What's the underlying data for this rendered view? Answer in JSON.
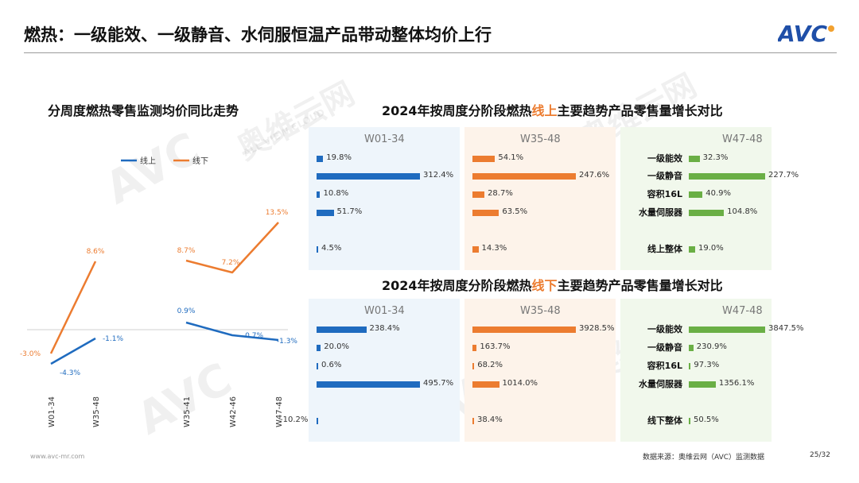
{
  "header": {
    "title": "燃热：一级能效、一级静音、水伺服恒温产品带动整体均价上行",
    "logo": "AVC"
  },
  "footer": {
    "source": "数据来源：奥维云网（AVC）监测数据",
    "page": "25/32",
    "url": "www.avc-mr.com"
  },
  "watermark": {
    "text": "奥维云网",
    "subtext": "ALL VIEW CLOUD",
    "mark": "AVC"
  },
  "colors": {
    "online": "#1f6bbf",
    "offline": "#ec7c30",
    "w4748": "#6aaf45",
    "panel_online": "#eef5fb",
    "panel_offline": "#fdf3ea",
    "panel_green": "#f1f8ec"
  },
  "chart_data": [
    {
      "type": "line",
      "title": "分周度燃热零售监测均价同比走势",
      "x": [
        "W01-34",
        "W35-48",
        "W35-41",
        "W42-46",
        "W47-48"
      ],
      "series": [
        {
          "name": "线上",
          "segments": [
            {
              "x": [
                "W01-34",
                "W35-48"
              ],
              "values": [
                -4.3,
                -1.1
              ]
            },
            {
              "x": [
                "W35-41",
                "W42-46",
                "W47-48"
              ],
              "values": [
                0.9,
                -0.7,
                -1.3
              ]
            }
          ]
        },
        {
          "name": "线下",
          "segments": [
            {
              "x": [
                "W01-34",
                "W35-48"
              ],
              "values": [
                -3.0,
                8.6
              ]
            },
            {
              "x": [
                "W35-41",
                "W42-46",
                "W47-48"
              ],
              "values": [
                8.7,
                7.2,
                13.5
              ]
            }
          ]
        }
      ],
      "labels": {
        "online": [
          "-4.3%",
          "-1.1%",
          "0.9%",
          "-0.7%",
          "-1.3%"
        ],
        "offline": [
          "-3.0%",
          "8.6%",
          "8.7%",
          "7.2%",
          "13.5%"
        ]
      },
      "unit": "%",
      "legend": "top-left"
    },
    {
      "type": "bar",
      "title": "2024年按周度分阶段燃热线上主要趋势产品零售量增长对比",
      "title_parts": [
        "2024年按周度分阶段燃热",
        "线上",
        "主要趋势产品零售量增长对比"
      ],
      "categories": [
        "一级能效",
        "一级静音",
        "容积16L",
        "水量伺服器",
        "线上整体"
      ],
      "panels": [
        {
          "name": "W01-34",
          "values": [
            19.8,
            312.4,
            10.8,
            51.7,
            4.5
          ],
          "labels": [
            "19.8%",
            "312.4%",
            "10.8%",
            "51.7%",
            "4.5%"
          ]
        },
        {
          "name": "W35-48",
          "values": [
            54.1,
            247.6,
            28.7,
            63.5,
            14.3
          ],
          "labels": [
            "54.1%",
            "247.6%",
            "28.7%",
            "63.5%",
            "14.3%"
          ]
        },
        {
          "name": "W47-48",
          "values": [
            32.3,
            227.7,
            40.9,
            104.8,
            19.0
          ],
          "labels": [
            "32.3%",
            "227.7%",
            "40.9%",
            "104.8%",
            "19.0%"
          ]
        }
      ]
    },
    {
      "type": "bar",
      "title": "2024年按周度分阶段燃热线下主要趋势产品零售量增长对比",
      "title_parts": [
        "2024年按周度分阶段燃热",
        "线下",
        "主要趋势产品零售量增长对比"
      ],
      "categories": [
        "一级能效",
        "一级静音",
        "容积16L",
        "水量伺服器",
        "线下整体"
      ],
      "panels": [
        {
          "name": "W01-34",
          "values": [
            238.4,
            20.0,
            0.6,
            495.7,
            -10.2
          ],
          "labels": [
            "238.4%",
            "20.0%",
            "0.6%",
            "495.7%",
            "-10.2%"
          ]
        },
        {
          "name": "W35-48",
          "values": [
            3928.5,
            163.7,
            68.2,
            1014.0,
            38.4
          ],
          "labels": [
            "3928.5%",
            "163.7%",
            "68.2%",
            "1014.0%",
            "38.4%"
          ]
        },
        {
          "name": "W47-48",
          "values": [
            3847.5,
            230.9,
            97.3,
            1356.1,
            50.5
          ],
          "labels": [
            "3847.5%",
            "230.9%",
            "97.3%",
            "1356.1%",
            "50.5%"
          ]
        }
      ]
    }
  ]
}
